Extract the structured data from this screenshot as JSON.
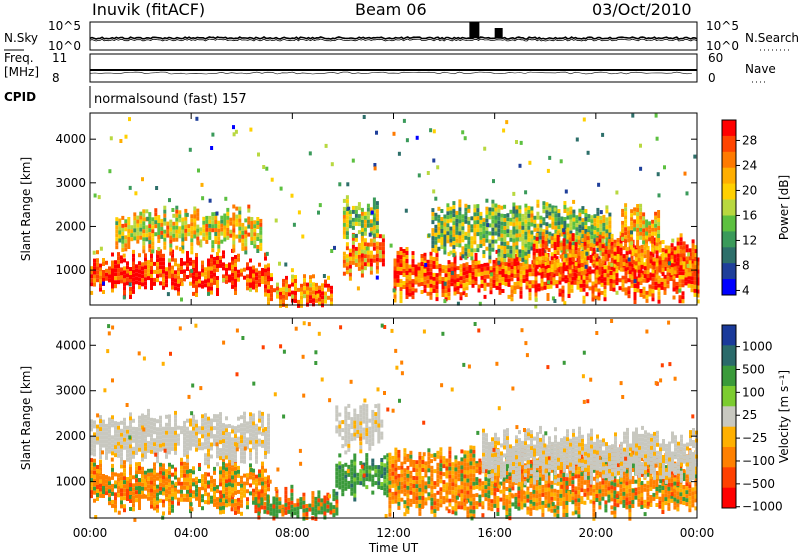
{
  "header": {
    "station": "Inuvik (fitACF)",
    "beam": "Beam 06",
    "date": "03/Oct/2010"
  },
  "panels": {
    "nsky": {
      "left_label": "N.Sky",
      "right_label": "N.Search",
      "ticks_left": [
        "10^5",
        "10^0"
      ],
      "ticks_right": [
        "10^5",
        "10^0"
      ]
    },
    "freq": {
      "left_label_1": "Freq.",
      "left_label_2": "[MHz]",
      "right_label": "Nave",
      "ticks_left": [
        "11",
        "8"
      ],
      "ticks_right": [
        "60",
        "0"
      ]
    },
    "cpid": {
      "label": "CPID",
      "value": "normalsound (fast) 157"
    }
  },
  "chart_data": [
    {
      "type": "heatmap",
      "name": "power",
      "ylabel": "Slant Range [km]",
      "xlabel": "Time UT",
      "ylim": [
        200,
        4600
      ],
      "yticks": [
        "1000",
        "2000",
        "3000",
        "4000"
      ],
      "xticks": [
        "00:00",
        "04:00",
        "08:00",
        "12:00",
        "16:00",
        "20:00",
        "00:00"
      ],
      "colorbar": {
        "label": "Power [dB]",
        "ticks": [
          "28",
          "24",
          "20",
          "16",
          "12",
          "8",
          "4"
        ],
        "colors": [
          "#ff0000",
          "#ff4400",
          "#ff7a00",
          "#ffae00",
          "#ffd000",
          "#b8d840",
          "#5cc040",
          "#3a9a5a",
          "#2d6f6a",
          "#1f3f9a",
          "#0000ff"
        ]
      },
      "bands": [
        {
          "t": [
            0.0,
            7.0
          ],
          "r": [
            700,
            1350
          ],
          "level": 0.9
        },
        {
          "t": [
            1.0,
            6.8
          ],
          "r": [
            1700,
            2400
          ],
          "level": 0.6
        },
        {
          "t": [
            7.0,
            9.6
          ],
          "r": [
            300,
            900
          ],
          "level": 0.75
        },
        {
          "t": [
            10.0,
            11.6
          ],
          "r": [
            1100,
            1800
          ],
          "level": 0.7
        },
        {
          "t": [
            10.0,
            11.4
          ],
          "r": [
            2000,
            2600
          ],
          "level": 0.5
        },
        {
          "t": [
            12.0,
            24.0
          ],
          "r": [
            600,
            1400
          ],
          "level": 0.85
        },
        {
          "t": [
            13.5,
            20.5
          ],
          "r": [
            1500,
            2500
          ],
          "level": 0.45
        },
        {
          "t": [
            17.5,
            24.0
          ],
          "r": [
            1100,
            1800
          ],
          "level": 0.8
        },
        {
          "t": [
            21.0,
            22.5
          ],
          "r": [
            1800,
            2400
          ],
          "level": 0.65
        }
      ]
    },
    {
      "type": "heatmap",
      "name": "velocity",
      "ylabel": "Slant Range [km]",
      "xlabel": "Time UT",
      "ylim": [
        200,
        4600
      ],
      "yticks": [
        "1000",
        "2000",
        "3000",
        "4000"
      ],
      "xticks": [
        "00:00",
        "04:00",
        "08:00",
        "12:00",
        "16:00",
        "20:00",
        "00:00"
      ],
      "colorbar": {
        "label": "Velocity [m s⁻¹]",
        "ticks": [
          "1000",
          "500",
          "100",
          "25",
          "−25",
          "−100",
          "−500",
          "−1000"
        ],
        "colors": [
          "#1a3a9a",
          "#2a6a6a",
          "#3a9a3a",
          "#7ccc30",
          "#c8c8c0",
          "#ffb000",
          "#ff8000",
          "#ff4000",
          "#ff0000"
        ]
      },
      "bands": [
        {
          "t": [
            0.0,
            7.0
          ],
          "r": [
            600,
            1400
          ],
          "cls": "mix-orange-green"
        },
        {
          "t": [
            0.0,
            7.0
          ],
          "r": [
            1700,
            2500
          ],
          "cls": "grey"
        },
        {
          "t": [
            6.5,
            9.8
          ],
          "r": [
            300,
            800
          ],
          "cls": "mix-green"
        },
        {
          "t": [
            9.7,
            11.8
          ],
          "r": [
            900,
            1500
          ],
          "cls": "green"
        },
        {
          "t": [
            9.7,
            11.5
          ],
          "r": [
            1900,
            2600
          ],
          "cls": "grey"
        },
        {
          "t": [
            11.8,
            24.0
          ],
          "r": [
            500,
            1700
          ],
          "cls": "mix-orange-green"
        },
        {
          "t": [
            15.5,
            24.0
          ],
          "r": [
            1300,
            2100
          ],
          "cls": "grey"
        }
      ]
    }
  ],
  "colors": {
    "axis": "#000000",
    "background": "#ffffff"
  }
}
